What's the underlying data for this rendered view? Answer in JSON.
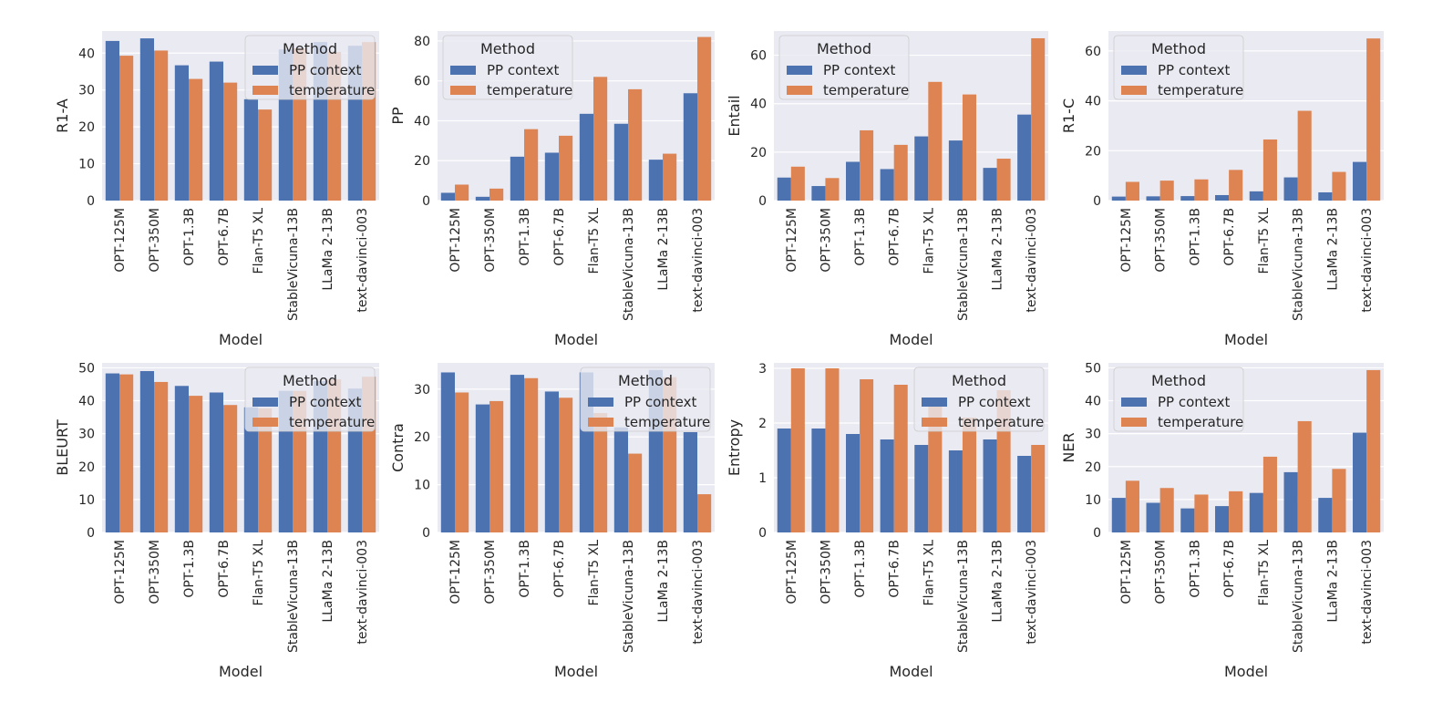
{
  "colors": {
    "pp_context": "#4c72b0",
    "temperature": "#dd8452",
    "panel_bg": "#eaeaf2",
    "grid": "#ffffff"
  },
  "chart_data": [
    {
      "type": "bar",
      "categories": [
        "OPT-125M",
        "OPT-350M",
        "OPT-1.3B",
        "OPT-6.7B",
        "Flan-T5 XL",
        "StableVicuna-13B",
        "LLaMa 2-13B",
        "text-davinci-003"
      ],
      "series": [
        {
          "name": "PP context",
          "values": [
            43.3,
            44.0,
            36.7,
            37.7,
            27.5,
            41.0,
            43.0,
            42.0
          ]
        },
        {
          "name": "temperature",
          "values": [
            39.3,
            40.7,
            33.0,
            32.0,
            24.7,
            41.3,
            40.3,
            43.0
          ]
        }
      ],
      "xlabel": "Model",
      "ylabel": "R1-A",
      "ylim": [
        0,
        46
      ],
      "yticks": [
        0,
        10,
        20,
        30,
        40
      ],
      "legend": {
        "title": "Method",
        "position": "top-right"
      },
      "grid": true
    },
    {
      "type": "bar",
      "categories": [
        "OPT-125M",
        "OPT-350M",
        "OPT-1.3B",
        "OPT-6.7B",
        "Flan-T5 XL",
        "StableVicuna-13B",
        "LLaMa 2-13B",
        "text-davinci-003"
      ],
      "series": [
        {
          "name": "PP context",
          "values": [
            3.9,
            1.9,
            22.0,
            24.0,
            43.5,
            38.5,
            20.5,
            53.8
          ]
        },
        {
          "name": "temperature",
          "values": [
            8.0,
            6.0,
            35.8,
            32.5,
            62.0,
            55.8,
            23.5,
            82.0
          ]
        }
      ],
      "xlabel": "Model",
      "ylabel": "PP",
      "ylim": [
        0,
        85
      ],
      "yticks": [
        0,
        20,
        40,
        60,
        80
      ],
      "legend": {
        "title": "Method",
        "position": "top-left"
      },
      "grid": true
    },
    {
      "type": "bar",
      "categories": [
        "OPT-125M",
        "OPT-350M",
        "OPT-1.3B",
        "OPT-6.7B",
        "Flan-T5 XL",
        "StableVicuna-13B",
        "LLaMa 2-13B",
        "text-davinci-003"
      ],
      "series": [
        {
          "name": "PP context",
          "values": [
            9.5,
            6.0,
            16.0,
            13.0,
            26.5,
            24.8,
            13.5,
            35.5
          ]
        },
        {
          "name": "temperature",
          "values": [
            14.0,
            9.3,
            29.0,
            23.0,
            49.0,
            43.8,
            17.3,
            67.0
          ]
        }
      ],
      "xlabel": "Model",
      "ylabel": "Entail",
      "ylim": [
        0,
        70
      ],
      "yticks": [
        0,
        20,
        40,
        60
      ],
      "legend": {
        "title": "Method",
        "position": "top-left"
      },
      "grid": true
    },
    {
      "type": "bar",
      "categories": [
        "OPT-125M",
        "OPT-350M",
        "OPT-1.3B",
        "OPT-6.7B",
        "Flan-T5 XL",
        "StableVicuna-13B",
        "LLaMa 2-13B",
        "text-davinci-003"
      ],
      "series": [
        {
          "name": "PP context",
          "values": [
            1.6,
            1.7,
            1.8,
            2.2,
            3.7,
            9.3,
            3.3,
            15.5
          ]
        },
        {
          "name": "temperature",
          "values": [
            7.5,
            8.0,
            8.5,
            12.3,
            24.5,
            36.0,
            11.5,
            65.0
          ]
        }
      ],
      "xlabel": "Model",
      "ylabel": "R1-C",
      "ylim": [
        0,
        68
      ],
      "yticks": [
        0,
        20,
        40,
        60
      ],
      "legend": {
        "title": "Method",
        "position": "top-left"
      },
      "grid": true
    },
    {
      "type": "bar",
      "categories": [
        "OPT-125M",
        "OPT-350M",
        "OPT-1.3B",
        "OPT-6.7B",
        "Flan-T5 XL",
        "StableVicuna-13B",
        "LLaMa 2-13B",
        "text-davinci-003"
      ],
      "series": [
        {
          "name": "PP context",
          "values": [
            48.3,
            49.0,
            44.5,
            42.5,
            38.0,
            43.0,
            46.0,
            43.7
          ]
        },
        {
          "name": "temperature",
          "values": [
            48.0,
            45.7,
            41.5,
            38.7,
            37.7,
            43.0,
            46.5,
            47.3
          ]
        }
      ],
      "xlabel": "Model",
      "ylabel": "BLEURT",
      "ylim": [
        0,
        51.5
      ],
      "yticks": [
        0,
        10,
        20,
        30,
        40,
        50
      ],
      "legend": {
        "title": "Method",
        "position": "top-right"
      },
      "grid": true
    },
    {
      "type": "bar",
      "categories": [
        "OPT-125M",
        "OPT-350M",
        "OPT-1.3B",
        "OPT-6.7B",
        "Flan-T5 XL",
        "StableVicuna-13B",
        "LLaMa 2-13B",
        "text-davinci-003"
      ],
      "series": [
        {
          "name": "PP context",
          "values": [
            33.5,
            26.8,
            33.0,
            29.5,
            33.5,
            22.0,
            34.0,
            21.0
          ]
        },
        {
          "name": "temperature",
          "values": [
            29.3,
            27.5,
            32.3,
            28.2,
            25.0,
            16.5,
            32.5,
            8.0
          ]
        }
      ],
      "xlabel": "Model",
      "ylabel": "Contra",
      "ylim": [
        0,
        35.5
      ],
      "yticks": [
        0,
        10,
        20,
        30
      ],
      "legend": {
        "title": "Method",
        "position": "top-right"
      },
      "grid": true
    },
    {
      "type": "bar",
      "categories": [
        "OPT-125M",
        "OPT-350M",
        "OPT-1.3B",
        "OPT-6.7B",
        "Flan-T5 XL",
        "StableVicuna-13B",
        "LLaMa 2-13B",
        "text-davinci-003"
      ],
      "series": [
        {
          "name": "PP context",
          "values": [
            1.9,
            1.9,
            1.8,
            1.7,
            1.6,
            1.5,
            1.7,
            1.4
          ]
        },
        {
          "name": "temperature",
          "values": [
            3.0,
            3.0,
            2.8,
            2.7,
            2.4,
            2.1,
            2.6,
            1.6
          ]
        }
      ],
      "xlabel": "Model",
      "ylabel": "Entropy",
      "ylim": [
        0,
        3.1
      ],
      "yticks": [
        0,
        1,
        2,
        3
      ],
      "legend": {
        "title": "Method",
        "position": "top-right"
      },
      "grid": true
    },
    {
      "type": "bar",
      "categories": [
        "OPT-125M",
        "OPT-350M",
        "OPT-1.3B",
        "OPT-6.7B",
        "Flan-T5 XL",
        "StableVicuna-13B",
        "LLaMa 2-13B",
        "text-davinci-003"
      ],
      "series": [
        {
          "name": "PP context",
          "values": [
            10.5,
            9.0,
            7.3,
            8.0,
            12.0,
            18.3,
            10.5,
            30.3
          ]
        },
        {
          "name": "temperature",
          "values": [
            15.7,
            13.5,
            11.5,
            12.5,
            23.0,
            33.8,
            19.3,
            49.3
          ]
        }
      ],
      "xlabel": "Model",
      "ylabel": "NER",
      "ylim": [
        0,
        51.5
      ],
      "yticks": [
        0,
        10,
        20,
        30,
        40,
        50
      ],
      "legend": {
        "title": "Method",
        "position": "top-left"
      },
      "grid": true
    }
  ]
}
